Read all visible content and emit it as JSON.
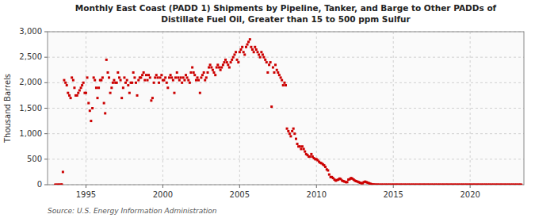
{
  "chart_data": {
    "type": "scatter",
    "title": "Monthly East Coast (PADD 1) Shipments by Pipeline, Tanker, and Barge to Other PADDs of\nDistillate Fuel Oil, Greater than 15 to 500 ppm Sulfur",
    "ylabel": "Thousand Barrels",
    "source": "Source: U.S. Energy Information Administration",
    "color": "#cc0000",
    "marker": "square",
    "grid": true,
    "xlim": [
      1992.5,
      2023.5
    ],
    "ylim": [
      0,
      3000
    ],
    "xticks": [
      1995,
      2000,
      2005,
      2010,
      2015,
      2020
    ],
    "yticks": [
      0,
      500,
      {
        "value": 1000,
        "label": "1,000"
      },
      {
        "value": 1500,
        "label": "1,500"
      },
      {
        "value": 2000,
        "label": "2,000"
      },
      {
        "value": 2500,
        "label": "2,500"
      },
      {
        "value": 3000,
        "label": "3,000"
      }
    ],
    "x": [
      1993.0,
      1993.08,
      1993.17,
      1993.25,
      1993.33,
      1993.42,
      1993.5,
      1993.58,
      1993.67,
      1993.75,
      1993.83,
      1993.92,
      1994.0,
      1994.08,
      1994.17,
      1994.25,
      1994.33,
      1994.42,
      1994.5,
      1994.58,
      1994.67,
      1994.75,
      1994.83,
      1994.92,
      1995.0,
      1995.08,
      1995.17,
      1995.25,
      1995.33,
      1995.42,
      1995.5,
      1995.58,
      1995.67,
      1995.75,
      1995.83,
      1995.92,
      1996.0,
      1996.08,
      1996.17,
      1996.25,
      1996.33,
      1996.42,
      1996.5,
      1996.58,
      1996.67,
      1996.75,
      1996.83,
      1996.92,
      1997.0,
      1997.08,
      1997.17,
      1997.25,
      1997.33,
      1997.42,
      1997.5,
      1997.58,
      1997.67,
      1997.75,
      1997.83,
      1997.92,
      1998.0,
      1998.08,
      1998.17,
      1998.25,
      1998.33,
      1998.42,
      1998.5,
      1998.58,
      1998.67,
      1998.75,
      1998.83,
      1998.92,
      1999.0,
      1999.08,
      1999.17,
      1999.25,
      1999.33,
      1999.42,
      1999.5,
      1999.58,
      1999.67,
      1999.75,
      1999.83,
      1999.92,
      2000.0,
      2000.08,
      2000.17,
      2000.25,
      2000.33,
      2000.42,
      2000.5,
      2000.58,
      2000.67,
      2000.75,
      2000.83,
      2000.92,
      2001.0,
      2001.08,
      2001.17,
      2001.25,
      2001.33,
      2001.42,
      2001.5,
      2001.58,
      2001.67,
      2001.75,
      2001.83,
      2001.92,
      2002.0,
      2002.08,
      2002.17,
      2002.25,
      2002.33,
      2002.42,
      2002.5,
      2002.58,
      2002.67,
      2002.75,
      2002.83,
      2002.92,
      2003.0,
      2003.08,
      2003.17,
      2003.25,
      2003.33,
      2003.42,
      2003.5,
      2003.58,
      2003.67,
      2003.75,
      2003.83,
      2003.92,
      2004.0,
      2004.08,
      2004.17,
      2004.25,
      2004.33,
      2004.42,
      2004.5,
      2004.58,
      2004.67,
      2004.75,
      2004.83,
      2004.92,
      2005.0,
      2005.08,
      2005.17,
      2005.25,
      2005.33,
      2005.42,
      2005.5,
      2005.58,
      2005.67,
      2005.75,
      2005.83,
      2005.92,
      2006.0,
      2006.08,
      2006.17,
      2006.25,
      2006.33,
      2006.42,
      2006.5,
      2006.58,
      2006.67,
      2006.75,
      2006.83,
      2006.92,
      2007.0,
      2007.08,
      2007.17,
      2007.25,
      2007.33,
      2007.42,
      2007.5,
      2007.58,
      2007.67,
      2007.75,
      2007.83,
      2007.92,
      2008.0,
      2008.08,
      2008.17,
      2008.25,
      2008.33,
      2008.42,
      2008.5,
      2008.58,
      2008.67,
      2008.75,
      2008.83,
      2008.92,
      2009.0,
      2009.08,
      2009.17,
      2009.25,
      2009.33,
      2009.42,
      2009.5,
      2009.58,
      2009.67,
      2009.75,
      2009.83,
      2009.92,
      2010.0,
      2010.08,
      2010.17,
      2010.25,
      2010.33,
      2010.42,
      2010.5,
      2010.58,
      2010.67,
      2010.75,
      2010.83,
      2010.92,
      2011.0,
      2011.08,
      2011.17,
      2011.25,
      2011.33,
      2011.42,
      2011.5,
      2011.58,
      2011.67,
      2011.75,
      2011.83,
      2011.92,
      2012.0,
      2012.08,
      2012.17,
      2012.25,
      2012.33,
      2012.42,
      2012.5,
      2012.58,
      2012.67,
      2012.75,
      2012.83,
      2012.92,
      2013.0,
      2013.08,
      2013.17,
      2013.25,
      2013.33,
      2013.42,
      2013.5,
      2013.58,
      2013.67,
      2013.75,
      2013.83,
      2013.92,
      2014.0,
      2014.08,
      2014.17,
      2014.25,
      2014.33,
      2014.42,
      2014.5,
      2014.58,
      2014.67,
      2014.75,
      2014.83,
      2014.92,
      2015.0,
      2015.08,
      2015.17,
      2015.25,
      2015.33,
      2015.42,
      2015.5,
      2015.58,
      2015.67,
      2015.75,
      2015.83,
      2015.92,
      2016.0,
      2016.08,
      2016.17,
      2016.25,
      2016.33,
      2016.42,
      2016.5,
      2016.58,
      2016.67,
      2016.75,
      2016.83,
      2016.92,
      2017.0,
      2017.08,
      2017.17,
      2017.25,
      2017.33,
      2017.42,
      2017.5,
      2017.58,
      2017.67,
      2017.75,
      2017.83,
      2017.92,
      2018.0,
      2018.08,
      2018.17,
      2018.25,
      2018.33,
      2018.42,
      2018.5,
      2018.58,
      2018.67,
      2018.75,
      2018.83,
      2018.92,
      2019.0,
      2019.08,
      2019.17,
      2019.25,
      2019.33,
      2019.42,
      2019.5,
      2019.58,
      2019.67,
      2019.75,
      2019.83,
      2019.92,
      2020.0,
      2020.08,
      2020.17,
      2020.25,
      2020.33,
      2020.42,
      2020.5,
      2020.58,
      2020.67,
      2020.75,
      2020.83,
      2020.92,
      2021.0,
      2021.08,
      2021.17,
      2021.25,
      2021.33,
      2021.42,
      2021.5,
      2021.58,
      2021.67,
      2021.75,
      2021.83,
      2021.92,
      2022.0,
      2022.08,
      2022.17,
      2022.25,
      2022.33,
      2022.42,
      2022.5,
      2022.58,
      2022.67,
      2022.75,
      2022.83,
      2022.92,
      2023.0,
      2023.08,
      2023.17,
      2023.25,
      2023.33
    ],
    "values": [
      0,
      0,
      0,
      0,
      0,
      5,
      250,
      2050,
      2000,
      1950,
      1800,
      1750,
      1700,
      2100,
      2050,
      1900,
      1750,
      1750,
      1800,
      1850,
      1900,
      1950,
      2000,
      1800,
      1800,
      2100,
      1600,
      1450,
      1250,
      1500,
      2100,
      2050,
      1900,
      1700,
      1900,
      2050,
      2050,
      2100,
      1600,
      1400,
      2450,
      2200,
      2100,
      1800,
      1900,
      2000,
      2050,
      2000,
      2000,
      2200,
      2100,
      2050,
      1700,
      1900,
      2100,
      2000,
      2050,
      1950,
      1800,
      2000,
      2000,
      2200,
      2100,
      2000,
      1750,
      2050,
      2100,
      2100,
      2150,
      2200,
      2050,
      2150,
      2050,
      2150,
      2100,
      1650,
      1700,
      2000,
      2100,
      2150,
      2100,
      2000,
      2100,
      2150,
      2050,
      2050,
      2100,
      2000,
      1900,
      2100,
      2150,
      2100,
      2050,
      1800,
      2100,
      2200,
      2100,
      2050,
      2100,
      2000,
      2100,
      2050,
      2150,
      2100,
      2050,
      2000,
      2200,
      2300,
      2200,
      2150,
      2050,
      2100,
      2050,
      1800,
      2100,
      2150,
      2200,
      2050,
      2100,
      2200,
      2300,
      2350,
      2300,
      2250,
      2200,
      2150,
      2300,
      2350,
      2300,
      2250,
      2300,
      2350,
      2400,
      2450,
      2400,
      2350,
      2300,
      2400,
      2450,
      2500,
      2550,
      2600,
      2450,
      2400,
      2600,
      2650,
      2700,
      2600,
      2550,
      2700,
      2750,
      2800,
      2850,
      2700,
      2650,
      2600,
      2700,
      2650,
      2600,
      2550,
      2500,
      2600,
      2550,
      2500,
      2450,
      2400,
      2200,
      2350,
      2400,
      1530,
      2300,
      2200,
      2350,
      2250,
      2200,
      2150,
      2100,
      2050,
      1950,
      2000,
      1950,
      1100,
      1050,
      1000,
      950,
      1050,
      1100,
      1000,
      900,
      800,
      750,
      750,
      700,
      750,
      700,
      650,
      600,
      580,
      550,
      550,
      600,
      550,
      520,
      500,
      500,
      480,
      450,
      430,
      420,
      400,
      380,
      350,
      300,
      280,
      200,
      150,
      150,
      130,
      100,
      80,
      90,
      100,
      120,
      110,
      80,
      70,
      60,
      50,
      50,
      100,
      110,
      130,
      120,
      100,
      80,
      70,
      60,
      50,
      40,
      30,
      30,
      50,
      60,
      50,
      40,
      30,
      20,
      10,
      5,
      3,
      2,
      1,
      1,
      0,
      0,
      0,
      0,
      0,
      0,
      0,
      0,
      0,
      0,
      0,
      0,
      0,
      0,
      0,
      0,
      0,
      0,
      0,
      0,
      0,
      0,
      0,
      0,
      0,
      0,
      0,
      0,
      0,
      0,
      0,
      0,
      0,
      0,
      0,
      0,
      0,
      0,
      0,
      0,
      0,
      0,
      0,
      0,
      0,
      0,
      0,
      0,
      0,
      0,
      0,
      0,
      0,
      0,
      0,
      0,
      0,
      0,
      0,
      0,
      0,
      0,
      0,
      0,
      0,
      0,
      0,
      0,
      0,
      0,
      0,
      0,
      0,
      0,
      0,
      0,
      0,
      0,
      0,
      0,
      0,
      0,
      0,
      0,
      0,
      0,
      0,
      0,
      0,
      0,
      0,
      0,
      0,
      0,
      0,
      0,
      0,
      0,
      0,
      0,
      0,
      0,
      0,
      0,
      0,
      0,
      0,
      0,
      0,
      0,
      0,
      0
    ]
  }
}
